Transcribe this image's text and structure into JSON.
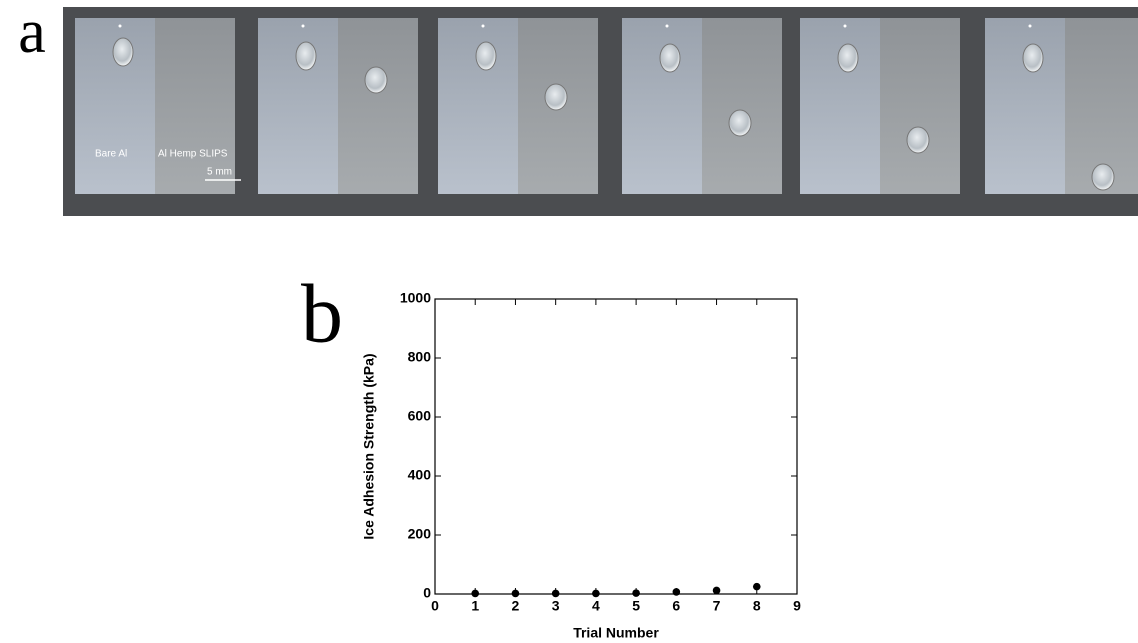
{
  "panels": {
    "a": "a",
    "b": "b"
  },
  "photo": {
    "left_label": "Bare Al",
    "right_label": "Al Hemp SLIPS",
    "scale_bar": "5 mm"
  },
  "chart_data": {
    "type": "scatter",
    "x_label": "Trial Number",
    "y_label": "Ice Adhesion Strength (kPa)",
    "x": [
      1,
      2,
      3,
      4,
      5,
      6,
      7,
      8
    ],
    "series": [
      {
        "color": "#000000",
        "values": [
          2,
          2,
          2,
          2,
          3,
          7,
          12,
          25
        ]
      }
    ],
    "xlim": [
      0,
      9
    ],
    "xticks": [
      0,
      1,
      2,
      3,
      4,
      5,
      6,
      7,
      8,
      9
    ],
    "ylim": [
      0,
      1000
    ],
    "yticks": [
      0,
      200,
      400,
      600,
      800,
      1000
    ]
  }
}
